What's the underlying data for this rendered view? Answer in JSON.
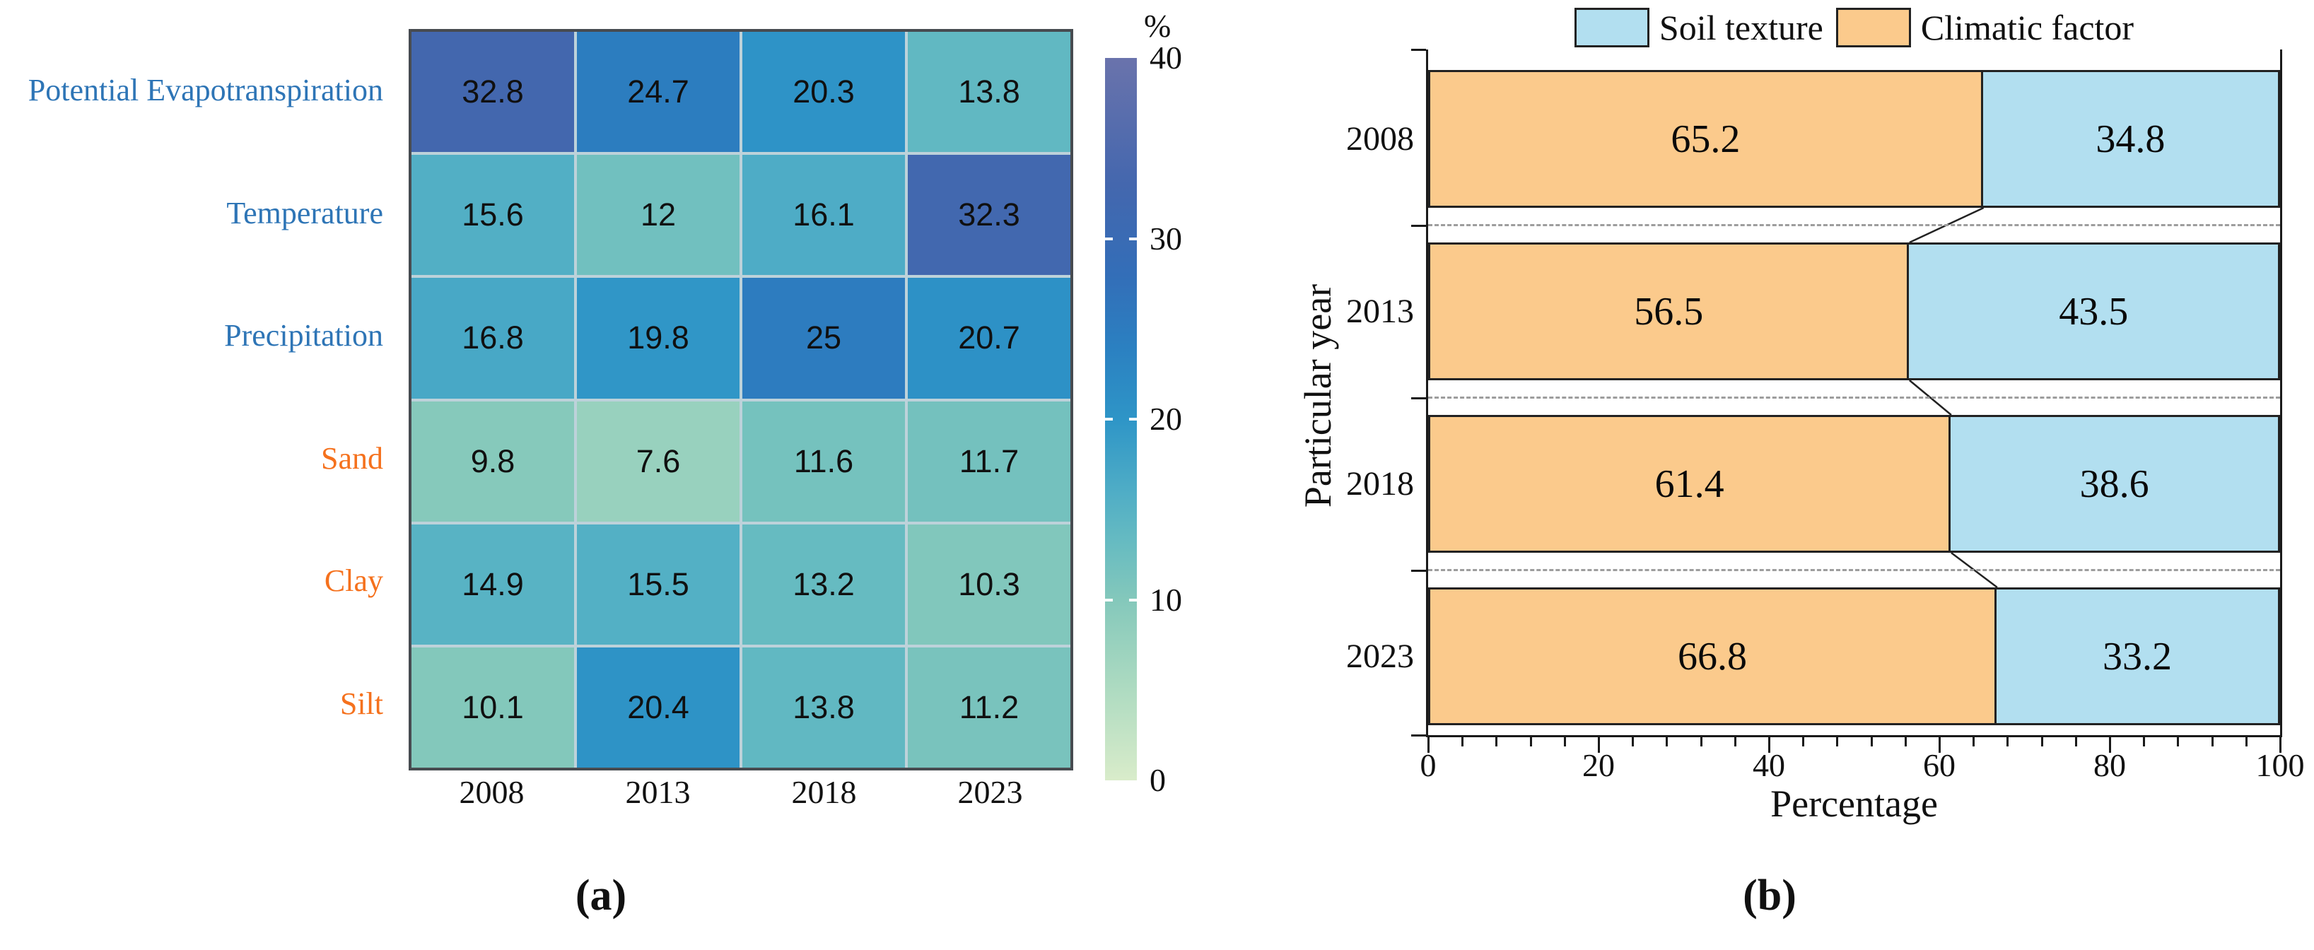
{
  "figure": {
    "panel_a_label": "(a)",
    "panel_b_label": "(b)"
  },
  "chart_data": [
    {
      "type": "heatmap",
      "panel": "a",
      "rows": [
        "Potential Evapotranspiration",
        "Temperature",
        "Precipitation",
        "Sand",
        "Clay",
        "Silt"
      ],
      "row_label_colors": [
        "#2e75b6",
        "#2e75b6",
        "#2e75b6",
        "#f5711d",
        "#f5711d",
        "#f5711d"
      ],
      "columns": [
        "2008",
        "2013",
        "2018",
        "2023"
      ],
      "values": [
        [
          32.8,
          24.7,
          20.3,
          13.8
        ],
        [
          15.6,
          12,
          16.1,
          32.3
        ],
        [
          16.8,
          19.8,
          25,
          20.7
        ],
        [
          9.8,
          7.6,
          11.6,
          11.7
        ],
        [
          14.9,
          15.5,
          13.2,
          10.3
        ],
        [
          10.1,
          20.4,
          13.8,
          11.2
        ]
      ],
      "colorbar": {
        "title": "%",
        "ticks": [
          0,
          10,
          20,
          30,
          40
        ],
        "notch_ticks": [
          10,
          20,
          30
        ],
        "vmin": 0,
        "vmax": 40,
        "colormap_stops": [
          {
            "v": 0,
            "c": "#d9ecca"
          },
          {
            "v": 5,
            "c": "#aedbc1"
          },
          {
            "v": 10,
            "c": "#84c8bb"
          },
          {
            "v": 13,
            "c": "#68bcc1"
          },
          {
            "v": 16,
            "c": "#4fadc6"
          },
          {
            "v": 20,
            "c": "#2e95c7"
          },
          {
            "v": 24,
            "c": "#2b80c1"
          },
          {
            "v": 28,
            "c": "#336eb8"
          },
          {
            "v": 33,
            "c": "#4467ae"
          },
          {
            "v": 40,
            "c": "#6a73ac"
          }
        ]
      }
    },
    {
      "type": "bar",
      "panel": "b",
      "orientation": "horizontal",
      "stacked": true,
      "categories": [
        "2008",
        "2013",
        "2018",
        "2023"
      ],
      "series": [
        {
          "name": "Climatic factor",
          "color": "#fbca8c",
          "values": [
            65.2,
            56.5,
            61.4,
            66.8
          ]
        },
        {
          "name": "Soil texture",
          "color": "#b2dff0",
          "values": [
            34.8,
            43.5,
            38.6,
            33.2
          ]
        }
      ],
      "legend": [
        {
          "label": "Soil texture",
          "color": "#b2dff0"
        },
        {
          "label": "Climatic factor",
          "color": "#fbca8c"
        }
      ],
      "xlabel": "Percentage",
      "ylabel": "Particular year",
      "xlim": [
        0,
        100
      ],
      "x_major_ticks": [
        0,
        20,
        40,
        60,
        80,
        100
      ],
      "x_minor_step": 4,
      "gap_line_style": "dashed"
    }
  ]
}
